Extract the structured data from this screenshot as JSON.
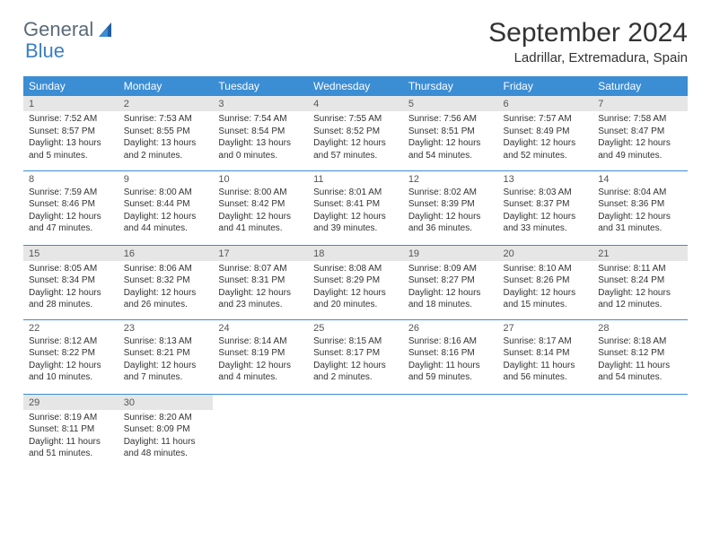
{
  "logo": {
    "text1": "General",
    "text2": "Blue"
  },
  "title": "September 2024",
  "location": "Ladrillar, Extremadura, Spain",
  "dayHeaders": [
    "Sunday",
    "Monday",
    "Tuesday",
    "Wednesday",
    "Thursday",
    "Friday",
    "Saturday"
  ],
  "colors": {
    "header_bg": "#3b8dd4",
    "header_text": "#ffffff",
    "shade_bg": "#e6e6e6",
    "text": "#333333",
    "border": "#3b8dd4"
  },
  "weeks": [
    [
      {
        "n": "1",
        "shaded": true,
        "sunrise": "Sunrise: 7:52 AM",
        "sunset": "Sunset: 8:57 PM",
        "day1": "Daylight: 13 hours",
        "day2": "and 5 minutes."
      },
      {
        "n": "2",
        "shaded": true,
        "sunrise": "Sunrise: 7:53 AM",
        "sunset": "Sunset: 8:55 PM",
        "day1": "Daylight: 13 hours",
        "day2": "and 2 minutes."
      },
      {
        "n": "3",
        "shaded": true,
        "sunrise": "Sunrise: 7:54 AM",
        "sunset": "Sunset: 8:54 PM",
        "day1": "Daylight: 13 hours",
        "day2": "and 0 minutes."
      },
      {
        "n": "4",
        "shaded": true,
        "sunrise": "Sunrise: 7:55 AM",
        "sunset": "Sunset: 8:52 PM",
        "day1": "Daylight: 12 hours",
        "day2": "and 57 minutes."
      },
      {
        "n": "5",
        "shaded": true,
        "sunrise": "Sunrise: 7:56 AM",
        "sunset": "Sunset: 8:51 PM",
        "day1": "Daylight: 12 hours",
        "day2": "and 54 minutes."
      },
      {
        "n": "6",
        "shaded": true,
        "sunrise": "Sunrise: 7:57 AM",
        "sunset": "Sunset: 8:49 PM",
        "day1": "Daylight: 12 hours",
        "day2": "and 52 minutes."
      },
      {
        "n": "7",
        "shaded": true,
        "sunrise": "Sunrise: 7:58 AM",
        "sunset": "Sunset: 8:47 PM",
        "day1": "Daylight: 12 hours",
        "day2": "and 49 minutes."
      }
    ],
    [
      {
        "n": "8",
        "shaded": false,
        "sunrise": "Sunrise: 7:59 AM",
        "sunset": "Sunset: 8:46 PM",
        "day1": "Daylight: 12 hours",
        "day2": "and 47 minutes."
      },
      {
        "n": "9",
        "shaded": false,
        "sunrise": "Sunrise: 8:00 AM",
        "sunset": "Sunset: 8:44 PM",
        "day1": "Daylight: 12 hours",
        "day2": "and 44 minutes."
      },
      {
        "n": "10",
        "shaded": false,
        "sunrise": "Sunrise: 8:00 AM",
        "sunset": "Sunset: 8:42 PM",
        "day1": "Daylight: 12 hours",
        "day2": "and 41 minutes."
      },
      {
        "n": "11",
        "shaded": false,
        "sunrise": "Sunrise: 8:01 AM",
        "sunset": "Sunset: 8:41 PM",
        "day1": "Daylight: 12 hours",
        "day2": "and 39 minutes."
      },
      {
        "n": "12",
        "shaded": false,
        "sunrise": "Sunrise: 8:02 AM",
        "sunset": "Sunset: 8:39 PM",
        "day1": "Daylight: 12 hours",
        "day2": "and 36 minutes."
      },
      {
        "n": "13",
        "shaded": false,
        "sunrise": "Sunrise: 8:03 AM",
        "sunset": "Sunset: 8:37 PM",
        "day1": "Daylight: 12 hours",
        "day2": "and 33 minutes."
      },
      {
        "n": "14",
        "shaded": false,
        "sunrise": "Sunrise: 8:04 AM",
        "sunset": "Sunset: 8:36 PM",
        "day1": "Daylight: 12 hours",
        "day2": "and 31 minutes."
      }
    ],
    [
      {
        "n": "15",
        "shaded": true,
        "sunrise": "Sunrise: 8:05 AM",
        "sunset": "Sunset: 8:34 PM",
        "day1": "Daylight: 12 hours",
        "day2": "and 28 minutes."
      },
      {
        "n": "16",
        "shaded": true,
        "sunrise": "Sunrise: 8:06 AM",
        "sunset": "Sunset: 8:32 PM",
        "day1": "Daylight: 12 hours",
        "day2": "and 26 minutes."
      },
      {
        "n": "17",
        "shaded": true,
        "sunrise": "Sunrise: 8:07 AM",
        "sunset": "Sunset: 8:31 PM",
        "day1": "Daylight: 12 hours",
        "day2": "and 23 minutes."
      },
      {
        "n": "18",
        "shaded": true,
        "sunrise": "Sunrise: 8:08 AM",
        "sunset": "Sunset: 8:29 PM",
        "day1": "Daylight: 12 hours",
        "day2": "and 20 minutes."
      },
      {
        "n": "19",
        "shaded": true,
        "sunrise": "Sunrise: 8:09 AM",
        "sunset": "Sunset: 8:27 PM",
        "day1": "Daylight: 12 hours",
        "day2": "and 18 minutes."
      },
      {
        "n": "20",
        "shaded": true,
        "sunrise": "Sunrise: 8:10 AM",
        "sunset": "Sunset: 8:26 PM",
        "day1": "Daylight: 12 hours",
        "day2": "and 15 minutes."
      },
      {
        "n": "21",
        "shaded": true,
        "sunrise": "Sunrise: 8:11 AM",
        "sunset": "Sunset: 8:24 PM",
        "day1": "Daylight: 12 hours",
        "day2": "and 12 minutes."
      }
    ],
    [
      {
        "n": "22",
        "shaded": false,
        "sunrise": "Sunrise: 8:12 AM",
        "sunset": "Sunset: 8:22 PM",
        "day1": "Daylight: 12 hours",
        "day2": "and 10 minutes."
      },
      {
        "n": "23",
        "shaded": false,
        "sunrise": "Sunrise: 8:13 AM",
        "sunset": "Sunset: 8:21 PM",
        "day1": "Daylight: 12 hours",
        "day2": "and 7 minutes."
      },
      {
        "n": "24",
        "shaded": false,
        "sunrise": "Sunrise: 8:14 AM",
        "sunset": "Sunset: 8:19 PM",
        "day1": "Daylight: 12 hours",
        "day2": "and 4 minutes."
      },
      {
        "n": "25",
        "shaded": false,
        "sunrise": "Sunrise: 8:15 AM",
        "sunset": "Sunset: 8:17 PM",
        "day1": "Daylight: 12 hours",
        "day2": "and 2 minutes."
      },
      {
        "n": "26",
        "shaded": false,
        "sunrise": "Sunrise: 8:16 AM",
        "sunset": "Sunset: 8:16 PM",
        "day1": "Daylight: 11 hours",
        "day2": "and 59 minutes."
      },
      {
        "n": "27",
        "shaded": false,
        "sunrise": "Sunrise: 8:17 AM",
        "sunset": "Sunset: 8:14 PM",
        "day1": "Daylight: 11 hours",
        "day2": "and 56 minutes."
      },
      {
        "n": "28",
        "shaded": false,
        "sunrise": "Sunrise: 8:18 AM",
        "sunset": "Sunset: 8:12 PM",
        "day1": "Daylight: 11 hours",
        "day2": "and 54 minutes."
      }
    ],
    [
      {
        "n": "29",
        "shaded": true,
        "sunrise": "Sunrise: 8:19 AM",
        "sunset": "Sunset: 8:11 PM",
        "day1": "Daylight: 11 hours",
        "day2": "and 51 minutes."
      },
      {
        "n": "30",
        "shaded": true,
        "sunrise": "Sunrise: 8:20 AM",
        "sunset": "Sunset: 8:09 PM",
        "day1": "Daylight: 11 hours",
        "day2": "and 48 minutes."
      },
      null,
      null,
      null,
      null,
      null
    ]
  ]
}
